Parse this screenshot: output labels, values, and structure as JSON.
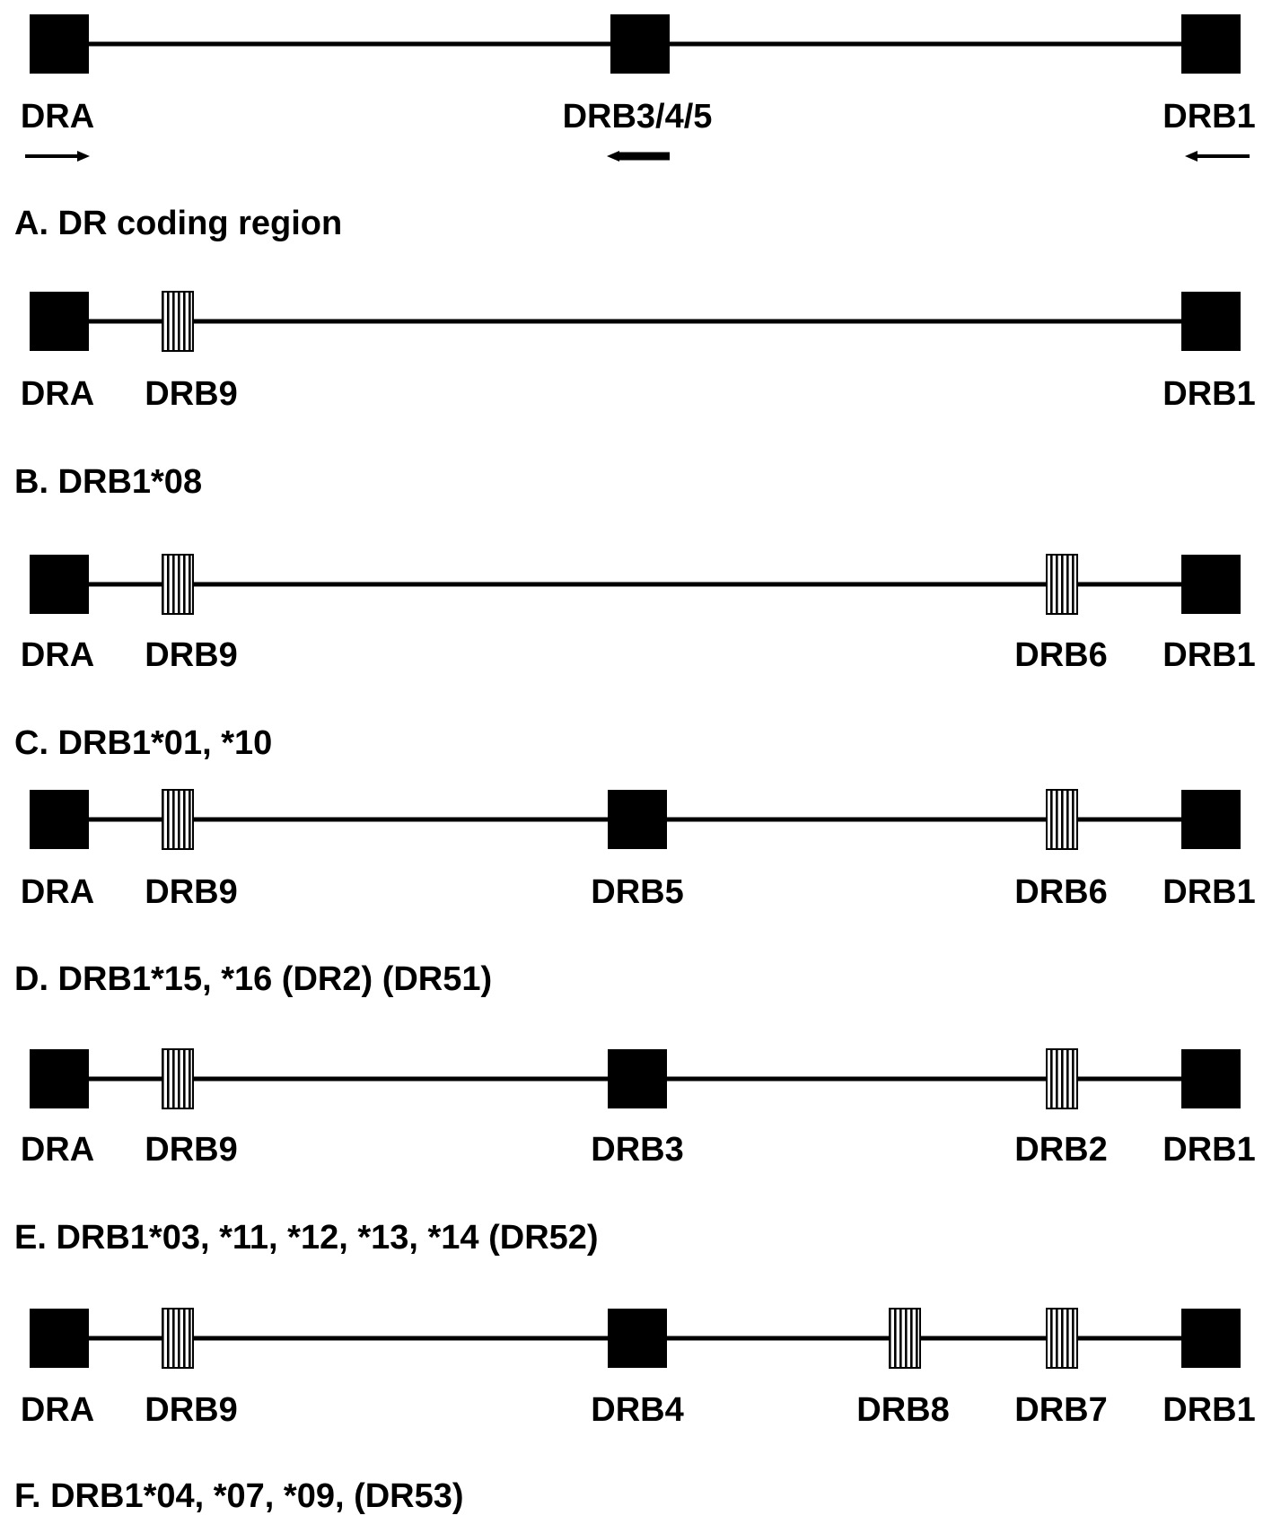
{
  "colors": {
    "ink": "#000000",
    "background": "#ffffff"
  },
  "panels": [
    {
      "caption": "A. DR coding region",
      "genes": [
        {
          "label": "DRA",
          "type": "functional",
          "orientation": "right"
        },
        {
          "label": "DRB3/4/5",
          "type": "functional",
          "orientation": "left"
        },
        {
          "label": "DRB1",
          "type": "functional",
          "orientation": "left"
        }
      ]
    },
    {
      "caption": "B. DRB1*08",
      "genes": [
        {
          "label": "DRA",
          "type": "functional"
        },
        {
          "label": "DRB9",
          "type": "pseudogene"
        },
        {
          "label": "DRB1",
          "type": "functional"
        }
      ]
    },
    {
      "caption": "C. DRB1*01, *10",
      "genes": [
        {
          "label": "DRA",
          "type": "functional"
        },
        {
          "label": "DRB9",
          "type": "pseudogene"
        },
        {
          "label": "DRB6",
          "type": "pseudogene"
        },
        {
          "label": "DRB1",
          "type": "functional"
        }
      ]
    },
    {
      "caption": "D. DRB1*15, *16 (DR2) (DR51)",
      "genes": [
        {
          "label": "DRA",
          "type": "functional"
        },
        {
          "label": "DRB9",
          "type": "pseudogene"
        },
        {
          "label": "DRB5",
          "type": "functional"
        },
        {
          "label": "DRB6",
          "type": "pseudogene"
        },
        {
          "label": "DRB1",
          "type": "functional"
        }
      ]
    },
    {
      "caption": "E. DRB1*03, *11, *12, *13, *14 (DR52)",
      "genes": [
        {
          "label": "DRA",
          "type": "functional"
        },
        {
          "label": "DRB9",
          "type": "pseudogene"
        },
        {
          "label": "DRB3",
          "type": "functional"
        },
        {
          "label": "DRB2",
          "type": "pseudogene"
        },
        {
          "label": "DRB1",
          "type": "functional"
        }
      ]
    },
    {
      "caption": "F. DRB1*04, *07, *09, (DR53)",
      "genes": [
        {
          "label": "DRA",
          "type": "functional"
        },
        {
          "label": "DRB9",
          "type": "pseudogene"
        },
        {
          "label": "DRB4",
          "type": "functional"
        },
        {
          "label": "DRB8",
          "type": "pseudogene"
        },
        {
          "label": "DRB7",
          "type": "pseudogene"
        },
        {
          "label": "DRB1",
          "type": "functional"
        }
      ]
    }
  ]
}
